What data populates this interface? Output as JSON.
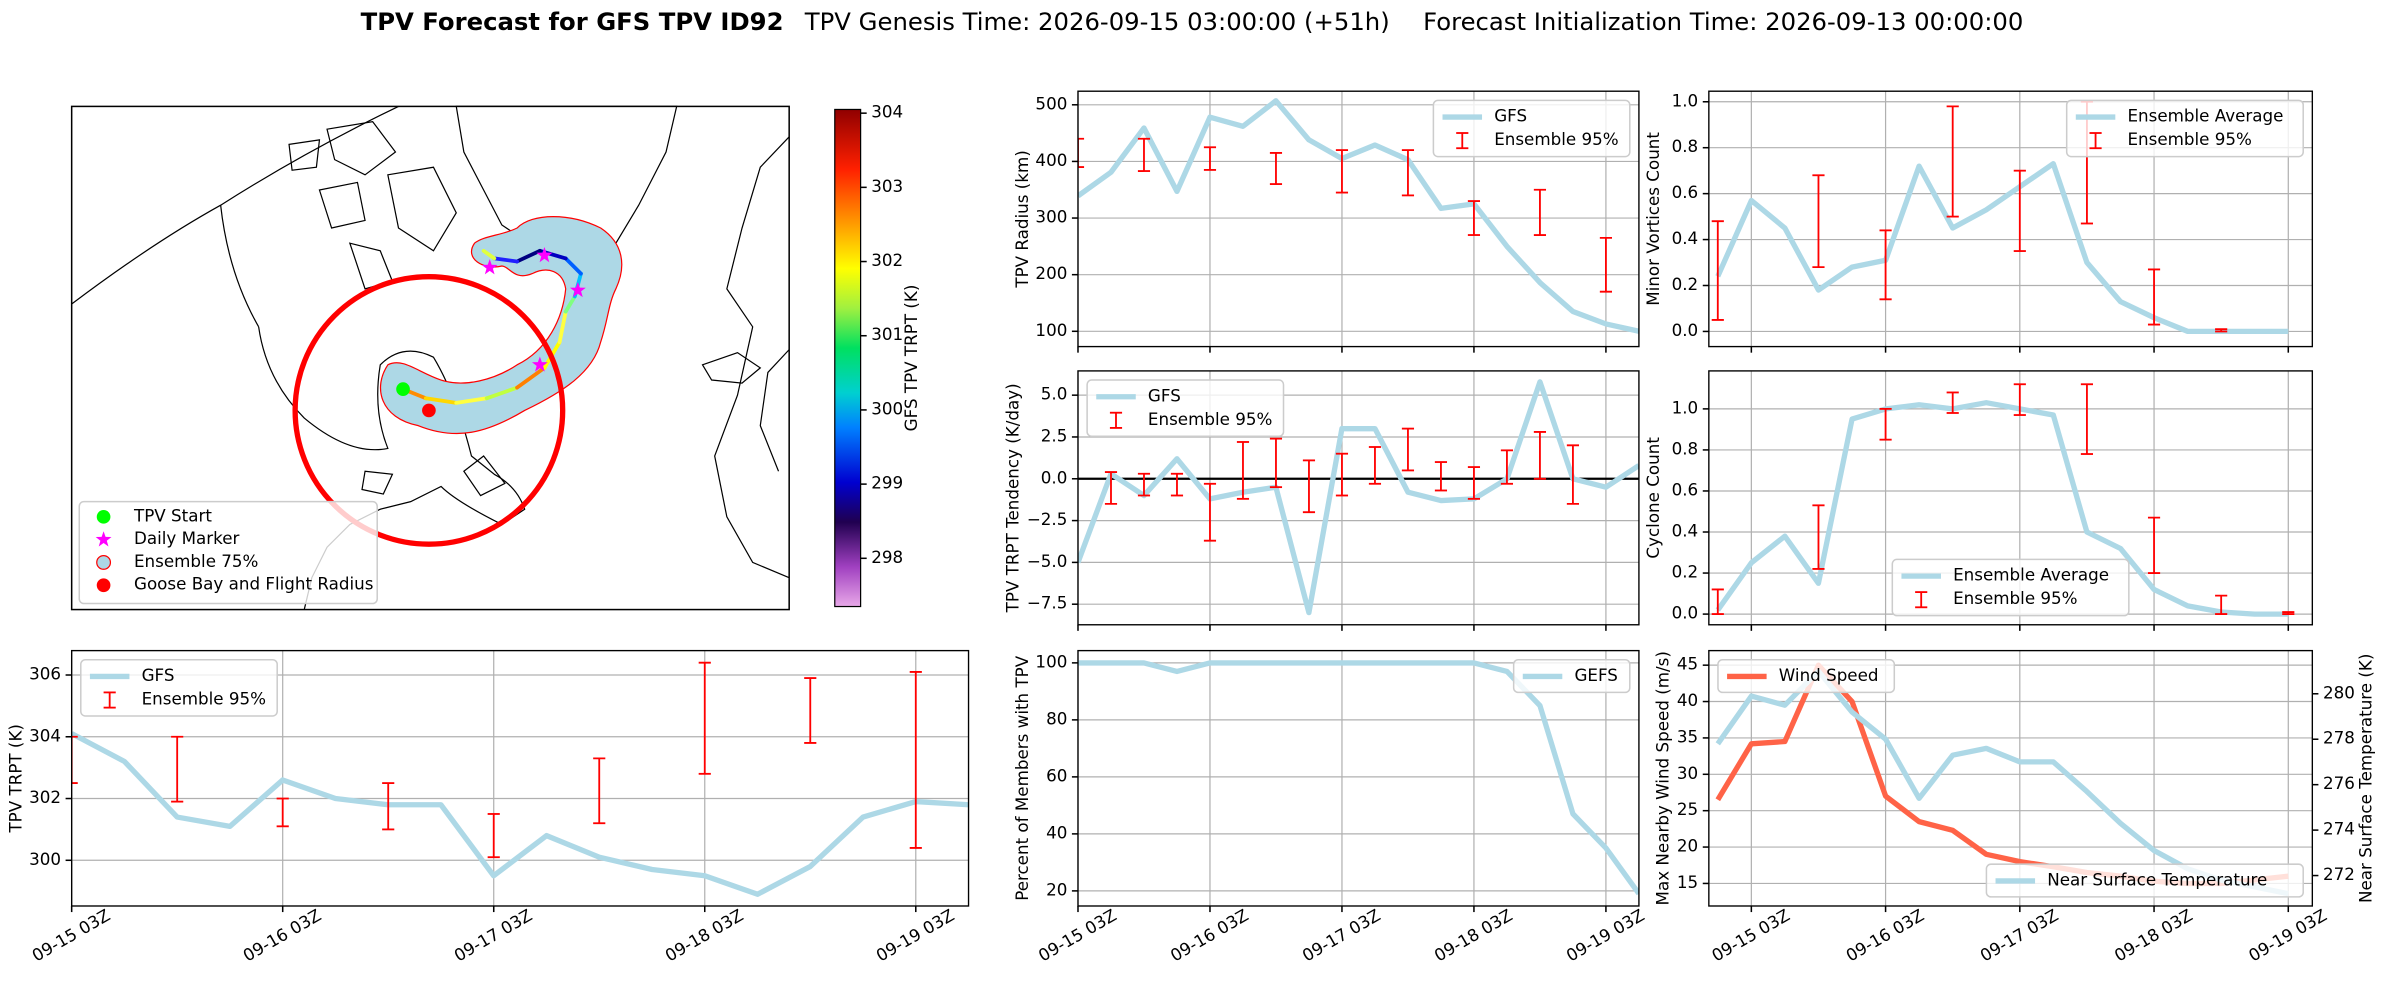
{
  "title": {
    "main": "TPV Forecast for GFS TPV ID92",
    "genesis": "TPV Genesis Time: 2026-09-15 03:00:00 (+51h)",
    "init": "Forecast Initialization Time: 2026-09-13 00:00:00"
  },
  "chart_data": [
    {
      "type": "map",
      "legend": [
        "TPV Start",
        "Daily Marker",
        "Ensemble 75%",
        "Goose Bay and Flight Radius"
      ],
      "colorbar": {
        "label": "GFS TPV TRPT (K)",
        "lim": [
          297.35,
          304.05
        ],
        "ticks": [
          298,
          299,
          300,
          301,
          302,
          303,
          304
        ]
      }
    },
    {
      "type": "line",
      "ylabel": "TPV TRPT (K)",
      "xlim": [
        0,
        102
      ],
      "ylim": [
        298.52,
        306.79
      ],
      "grid": true,
      "legend": "upper left",
      "show_xticklabels": true,
      "xticks": [
        {
          "value": 0,
          "label": "09-15 03Z"
        },
        {
          "value": 24,
          "label": "09-16 03Z"
        },
        {
          "value": 48,
          "label": "09-17 03Z"
        },
        {
          "value": 72,
          "label": "09-18 03Z"
        },
        {
          "value": 96,
          "label": "09-19 03Z"
        }
      ],
      "yticks": [
        300,
        302,
        304,
        306
      ],
      "series": [
        {
          "name": "GFS",
          "color": "#add8e6",
          "x": [
            0,
            6,
            12,
            18,
            24,
            30,
            36,
            42,
            48,
            54,
            60,
            66,
            72,
            78,
            84,
            90,
            96,
            102
          ],
          "values": [
            304.1,
            303.2,
            301.4,
            301.1,
            302.6,
            302.0,
            301.8,
            301.8,
            299.5,
            300.8,
            300.1,
            299.7,
            299.5,
            298.9,
            299.8,
            301.4,
            301.9,
            301.8
          ]
        },
        {
          "name": "Ensemble 95%",
          "kind": "errorbar",
          "color": "#ff0000",
          "x": [
            0,
            12,
            24,
            36,
            48,
            60,
            72,
            84,
            96
          ],
          "low": [
            302.5,
            301.9,
            301.1,
            301.0,
            300.1,
            301.2,
            302.8,
            303.8,
            300.4
          ],
          "high": [
            304.0,
            304.0,
            302.0,
            302.5,
            301.5,
            303.3,
            306.4,
            305.9,
            306.1
          ]
        }
      ]
    },
    {
      "type": "line",
      "ylabel": "TPV Radius (km)",
      "xlim": [
        0,
        102
      ],
      "ylim": [
        73,
        524
      ],
      "grid": true,
      "legend": "upper right",
      "show_xticklabels": false,
      "xticks": [
        0,
        24,
        48,
        72,
        96
      ],
      "yticks": [
        100,
        200,
        300,
        400,
        500
      ],
      "series": [
        {
          "name": "GFS",
          "color": "#add8e6",
          "x": [
            0,
            6,
            12,
            18,
            24,
            30,
            36,
            42,
            48,
            54,
            60,
            66,
            72,
            78,
            84,
            90,
            96,
            102
          ],
          "values": [
            339,
            381,
            459,
            347,
            478,
            462,
            507,
            438,
            405,
            429,
            403,
            317,
            325,
            250,
            186,
            135,
            113,
            100
          ]
        },
        {
          "name": "Ensemble 95%",
          "kind": "errorbar",
          "color": "#ff0000",
          "x": [
            0,
            12,
            24,
            36,
            48,
            60,
            72,
            84,
            96
          ],
          "low": [
            390,
            383,
            385,
            360,
            345,
            340,
            270,
            270,
            170
          ],
          "high": [
            440,
            440,
            425,
            415,
            420,
            420,
            330,
            350,
            265
          ]
        }
      ]
    },
    {
      "type": "line",
      "ylabel": "TPV TRPT Tendency (K/day)",
      "xlim": [
        0,
        102
      ],
      "ylim": [
        -8.73,
        6.45
      ],
      "grid": true,
      "legend": "upper left",
      "show_xticklabels": false,
      "hline": 0,
      "xticks": [
        0,
        24,
        48,
        72,
        96
      ],
      "yticks": [
        {
          "value": 5,
          "label": "5.0"
        },
        {
          "value": 2.5,
          "label": "2.5"
        },
        {
          "value": 0,
          "label": "0.0"
        },
        {
          "value": -2.5,
          "label": "−2.5"
        },
        {
          "value": -5,
          "label": "−5.0"
        },
        {
          "value": -7.5,
          "label": "−7.5"
        }
      ],
      "series": [
        {
          "name": "GFS",
          "color": "#add8e6",
          "x": [
            0,
            6,
            12,
            18,
            24,
            30,
            36,
            42,
            48,
            54,
            60,
            66,
            72,
            78,
            84,
            90,
            96,
            102
          ],
          "values": [
            -5.0,
            0.3,
            -1.0,
            1.2,
            -1.2,
            -0.8,
            -0.5,
            -8.0,
            3.0,
            3.0,
            -0.8,
            -1.3,
            -1.2,
            0.0,
            5.8,
            0.0,
            -0.5,
            0.8
          ]
        },
        {
          "name": "Ensemble 95%",
          "kind": "errorbar",
          "color": "#ff0000",
          "x": [
            6,
            12,
            18,
            24,
            30,
            36,
            42,
            48,
            54,
            60,
            66,
            72,
            78,
            84,
            90
          ],
          "low": [
            -1.5,
            -1.0,
            -1.0,
            -3.7,
            -1.2,
            -0.5,
            -2.0,
            -1.0,
            -0.3,
            0.5,
            -0.7,
            -1.2,
            -0.3,
            0.0,
            -1.5
          ],
          "high": [
            0.4,
            0.3,
            0.3,
            -0.3,
            2.2,
            2.4,
            1.1,
            1.5,
            1.9,
            3.0,
            1.0,
            0.7,
            1.7,
            2.8,
            2.0
          ]
        }
      ]
    },
    {
      "type": "line",
      "ylabel": "Percent of Members with TPV",
      "xlim": [
        0,
        102
      ],
      "ylim": [
        14.7,
        104.3
      ],
      "grid": true,
      "legend": "upper right",
      "show_xticklabels": true,
      "xticks": [
        {
          "value": 0,
          "label": "09-15 03Z"
        },
        {
          "value": 24,
          "label": "09-16 03Z"
        },
        {
          "value": 48,
          "label": "09-17 03Z"
        },
        {
          "value": 72,
          "label": "09-18 03Z"
        },
        {
          "value": 96,
          "label": "09-19 03Z"
        }
      ],
      "yticks": [
        20,
        40,
        60,
        80,
        100
      ],
      "series": [
        {
          "name": "GEFS",
          "color": "#add8e6",
          "x": [
            0,
            6,
            12,
            18,
            24,
            30,
            36,
            42,
            48,
            54,
            60,
            66,
            72,
            78,
            84,
            90,
            96,
            102
          ],
          "values": [
            100,
            100,
            100,
            97,
            100,
            100,
            100,
            100,
            100,
            100,
            100,
            100,
            100,
            97,
            85,
            47,
            35,
            19
          ]
        }
      ]
    },
    {
      "type": "line",
      "ylabel": "Minor Vortices Count",
      "xlim": [
        -7.6,
        100.3
      ],
      "ylim": [
        -0.066,
        1.046
      ],
      "grid": true,
      "legend": "upper right",
      "show_xticklabels": false,
      "xticks": [
        0,
        24,
        48,
        72,
        96
      ],
      "yticks": [
        {
          "value": 0,
          "label": "0.0"
        },
        {
          "value": 0.2,
          "label": "0.2"
        },
        {
          "value": 0.4,
          "label": "0.4"
        },
        {
          "value": 0.6,
          "label": "0.6"
        },
        {
          "value": 0.8,
          "label": "0.8"
        },
        {
          "value": 1,
          "label": "1.0"
        }
      ],
      "series": [
        {
          "name": "Ensemble Average",
          "color": "#add8e6",
          "x": [
            -6,
            0,
            6,
            12,
            18,
            24,
            30,
            36,
            42,
            48,
            54,
            60,
            66,
            72,
            78,
            84,
            90,
            96
          ],
          "values": [
            0.24,
            0.57,
            0.45,
            0.18,
            0.28,
            0.31,
            0.72,
            0.45,
            0.53,
            0.63,
            0.73,
            0.3,
            0.13,
            0.06,
            0.0,
            0.0,
            0.0,
            0.0
          ]
        },
        {
          "name": "Ensemble 95%",
          "kind": "errorbar",
          "color": "#ff0000",
          "x": [
            -6,
            12,
            24,
            36,
            48,
            60,
            72,
            84
          ],
          "low": [
            0.05,
            0.28,
            0.14,
            0.5,
            0.35,
            0.47,
            0.03,
            0.0
          ],
          "high": [
            0.48,
            0.68,
            0.44,
            0.98,
            0.7,
            1.0,
            0.27,
            0.01
          ]
        }
      ]
    },
    {
      "type": "line",
      "ylabel": "Cyclone Count",
      "xlim": [
        -7.6,
        100.3
      ],
      "ylim": [
        -0.052,
        1.185
      ],
      "grid": true,
      "legend": "lower center",
      "show_xticklabels": false,
      "xticks": [
        0,
        24,
        48,
        72,
        96
      ],
      "yticks": [
        {
          "value": 0,
          "label": "0.0"
        },
        {
          "value": 0.2,
          "label": "0.2"
        },
        {
          "value": 0.4,
          "label": "0.4"
        },
        {
          "value": 0.6,
          "label": "0.6"
        },
        {
          "value": 0.8,
          "label": "0.8"
        },
        {
          "value": 1,
          "label": "1.0"
        }
      ],
      "series": [
        {
          "name": "Ensemble Average",
          "color": "#add8e6",
          "x": [
            -6,
            0,
            6,
            12,
            18,
            24,
            30,
            36,
            42,
            48,
            54,
            60,
            66,
            72,
            78,
            84,
            90,
            96
          ],
          "values": [
            0.02,
            0.25,
            0.38,
            0.15,
            0.95,
            1.0,
            1.02,
            1.0,
            1.03,
            1.0,
            0.97,
            0.4,
            0.32,
            0.12,
            0.04,
            0.01,
            0.0,
            0.0
          ]
        },
        {
          "name": "Ensemble 95%",
          "kind": "errorbar",
          "color": "#ff0000",
          "x": [
            -6,
            12,
            24,
            36,
            48,
            60,
            72,
            84,
            96
          ],
          "low": [
            0.0,
            0.22,
            0.85,
            0.98,
            0.97,
            0.78,
            0.2,
            0.0,
            0.0
          ],
          "high": [
            0.12,
            0.53,
            1.0,
            1.08,
            1.12,
            1.12,
            0.47,
            0.09,
            0.01
          ]
        }
      ]
    },
    {
      "type": "line",
      "ylabel": "Max Nearby Wind Speed (m/s)",
      "ylabel_color": "#ff6347",
      "y2label": "Near Surface Temperature (K)",
      "y2label_color": "#4169e1",
      "xlim": [
        -7.6,
        100.3
      ],
      "ylim": [
        11.9,
        47
      ],
      "y2lim": [
        270.66,
        281.9
      ],
      "grid": true,
      "legend": "upper left",
      "y2legend": "lower right",
      "show_xticklabels": true,
      "xticks": [
        {
          "value": 0,
          "label": "09-15 03Z"
        },
        {
          "value": 24,
          "label": "09-16 03Z"
        },
        {
          "value": 48,
          "label": "09-17 03Z"
        },
        {
          "value": 72,
          "label": "09-18 03Z"
        },
        {
          "value": 96,
          "label": "09-19 03Z"
        }
      ],
      "yticks": [
        15,
        20,
        25,
        30,
        35,
        40,
        45
      ],
      "y2ticks": [
        272,
        274,
        276,
        278,
        280
      ],
      "series": [
        {
          "name": "Wind Speed",
          "color": "#ff6347",
          "x": [
            -6,
            0,
            6,
            12,
            18,
            24,
            30,
            36,
            42,
            48,
            54,
            60,
            66,
            72,
            78,
            84,
            90,
            96
          ],
          "values": [
            26.5,
            34.2,
            34.5,
            45,
            40,
            27,
            23.5,
            22.3,
            19,
            18,
            17.3,
            16.5,
            16,
            15.3,
            15,
            15,
            15.5,
            16
          ]
        },
        {
          "name": "Near Surface Temperature",
          "color": "#add8e6",
          "axis": "y2",
          "x": [
            -6,
            0,
            6,
            12,
            18,
            24,
            30,
            36,
            42,
            48,
            54,
            60,
            66,
            72,
            78,
            84,
            90,
            96
          ],
          "values": [
            277.8,
            279.9,
            279.5,
            281.0,
            279.2,
            278.0,
            275.4,
            277.3,
            277.6,
            277.0,
            277.0,
            275.7,
            274.3,
            273.1,
            272.3,
            271.8,
            271.5,
            271.2
          ]
        }
      ]
    }
  ]
}
